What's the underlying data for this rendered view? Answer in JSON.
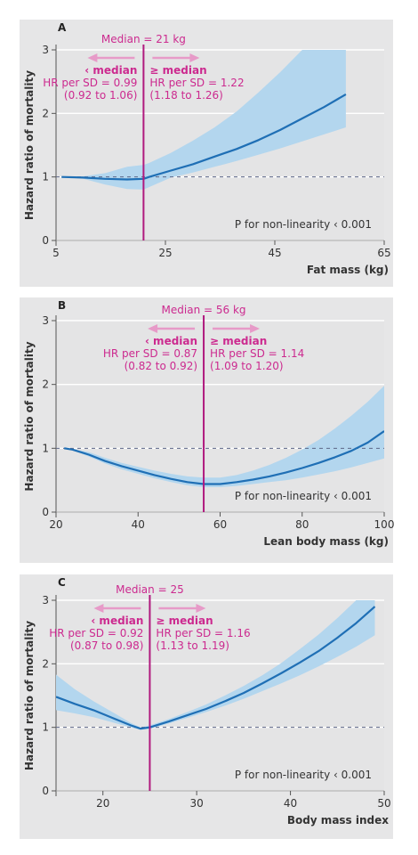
{
  "colors": {
    "panel_bg": "#e6e6e7",
    "plot_bg": "#e4e4e5",
    "curve": "#1f6fb5",
    "band": "#b3d6ee",
    "median_line": "#b0197e",
    "median_text": "#cc2a8f",
    "arrow": "#e79ac8",
    "reference_line": "#5c6688",
    "axis_text": "#333333"
  },
  "y_axis_label": "Hazard ratio of mortality",
  "chart_data": [
    {
      "panel_label": "A",
      "type": "line",
      "title": "",
      "xlabel": "Fat mass (kg)",
      "ylabel": "Hazard ratio of mortality",
      "xlim": [
        5,
        65
      ],
      "ylim": [
        0,
        3
      ],
      "x_ticks": [
        "5",
        "25",
        "45",
        "65"
      ],
      "y_ticks": [
        "0",
        "1",
        "2",
        "3"
      ],
      "grid": true,
      "reference_hr": 1,
      "median_label": "Median = 21 kg",
      "median_value": 21,
      "below_label": "‹ median",
      "below_hr": "HR per SD = 0.99",
      "below_ci": "(0.92 to 1.06)",
      "above_label": "≥ median",
      "above_hr": "HR per SD = 1.22",
      "above_ci": "(1.18 to 1.26)",
      "annotation": "P for non-linearity ‹ 0.001",
      "series": [
        {
          "x": [
            6,
            10,
            14,
            18,
            21,
            22,
            26,
            30,
            34,
            38,
            42,
            46,
            50,
            54,
            58
          ],
          "y": [
            1.0,
            0.99,
            0.97,
            0.96,
            0.97,
            1.0,
            1.1,
            1.2,
            1.32,
            1.44,
            1.58,
            1.74,
            1.92,
            2.1,
            2.3
          ],
          "lower": [
            1.0,
            0.97,
            0.88,
            0.81,
            0.8,
            0.84,
            0.99,
            1.07,
            1.16,
            1.25,
            1.35,
            1.45,
            1.56,
            1.67,
            1.78
          ],
          "upper": [
            1.0,
            1.01,
            1.06,
            1.16,
            1.19,
            1.22,
            1.38,
            1.57,
            1.78,
            2.03,
            2.33,
            2.65,
            3.0,
            3.35,
            3.7
          ]
        }
      ]
    },
    {
      "panel_label": "B",
      "type": "line",
      "title": "",
      "xlabel": "Lean body mass (kg)",
      "ylabel": "Hazard ratio of mortality",
      "xlim": [
        20,
        100
      ],
      "ylim": [
        0,
        3
      ],
      "x_ticks": [
        "20",
        "40",
        "60",
        "80",
        "100"
      ],
      "y_ticks": [
        "0",
        "1",
        "2",
        "3"
      ],
      "grid": true,
      "reference_hr": 1,
      "median_label": "Median = 56 kg",
      "median_value": 56,
      "below_label": "‹ median",
      "below_hr": "HR per SD = 0.87",
      "below_ci": "(0.82 to 0.92)",
      "above_label": "≥ median",
      "above_hr": "HR per SD = 1.14",
      "above_ci": "(1.09 to 1.20)",
      "annotation": "P for non-linearity ‹ 0.001",
      "series": [
        {
          "x": [
            22,
            24,
            28,
            32,
            36,
            40,
            44,
            48,
            52,
            56,
            60,
            64,
            68,
            72,
            76,
            80,
            84,
            88,
            92,
            96,
            100
          ],
          "y": [
            1.0,
            0.98,
            0.9,
            0.8,
            0.72,
            0.65,
            0.58,
            0.52,
            0.47,
            0.44,
            0.44,
            0.47,
            0.51,
            0.56,
            0.62,
            0.69,
            0.77,
            0.86,
            0.96,
            1.09,
            1.27
          ],
          "lower": [
            1.0,
            0.97,
            0.87,
            0.76,
            0.67,
            0.6,
            0.53,
            0.47,
            0.42,
            0.39,
            0.39,
            0.41,
            0.44,
            0.47,
            0.5,
            0.54,
            0.59,
            0.64,
            0.7,
            0.77,
            0.84
          ],
          "upper": [
            1.0,
            0.99,
            0.94,
            0.85,
            0.77,
            0.71,
            0.65,
            0.6,
            0.56,
            0.54,
            0.54,
            0.58,
            0.65,
            0.74,
            0.85,
            0.98,
            1.13,
            1.31,
            1.51,
            1.73,
            1.98
          ]
        }
      ]
    },
    {
      "panel_label": "C",
      "type": "line",
      "title": "",
      "xlabel": "Body mass index",
      "ylabel": "Hazard ratio of mortality",
      "xlim": [
        15,
        50
      ],
      "ylim": [
        0,
        3
      ],
      "x_ticks": [
        "20",
        "30",
        "40",
        "50"
      ],
      "y_ticks": [
        "0",
        "1",
        "2",
        "3"
      ],
      "grid": true,
      "reference_hr": 1,
      "median_label": "Median = 25",
      "median_value": 25,
      "below_label": "‹ median",
      "below_hr": "HR per SD = 0.92",
      "below_ci": "(0.87 to 0.98)",
      "above_label": "≥ median",
      "above_hr": "HR per SD = 1.16",
      "above_ci": "(1.13 to 1.19)",
      "annotation": "P for non-linearity ‹ 0.001",
      "series": [
        {
          "x": [
            15,
            17,
            19,
            21,
            23,
            24,
            25,
            27,
            29,
            31,
            33,
            35,
            37,
            39,
            41,
            43,
            45,
            47,
            49
          ],
          "y": [
            1.48,
            1.37,
            1.27,
            1.15,
            1.03,
            0.98,
            1.0,
            1.09,
            1.19,
            1.29,
            1.41,
            1.54,
            1.69,
            1.85,
            2.02,
            2.2,
            2.41,
            2.64,
            2.9
          ],
          "lower": [
            1.27,
            1.22,
            1.16,
            1.08,
            1.0,
            0.96,
            0.98,
            1.06,
            1.15,
            1.24,
            1.34,
            1.45,
            1.57,
            1.69,
            1.82,
            1.96,
            2.11,
            2.27,
            2.45
          ],
          "upper": [
            1.83,
            1.6,
            1.41,
            1.24,
            1.07,
            1.0,
            1.03,
            1.13,
            1.24,
            1.36,
            1.5,
            1.65,
            1.82,
            2.01,
            2.23,
            2.46,
            2.72,
            3.0,
            3.3
          ]
        }
      ]
    }
  ]
}
